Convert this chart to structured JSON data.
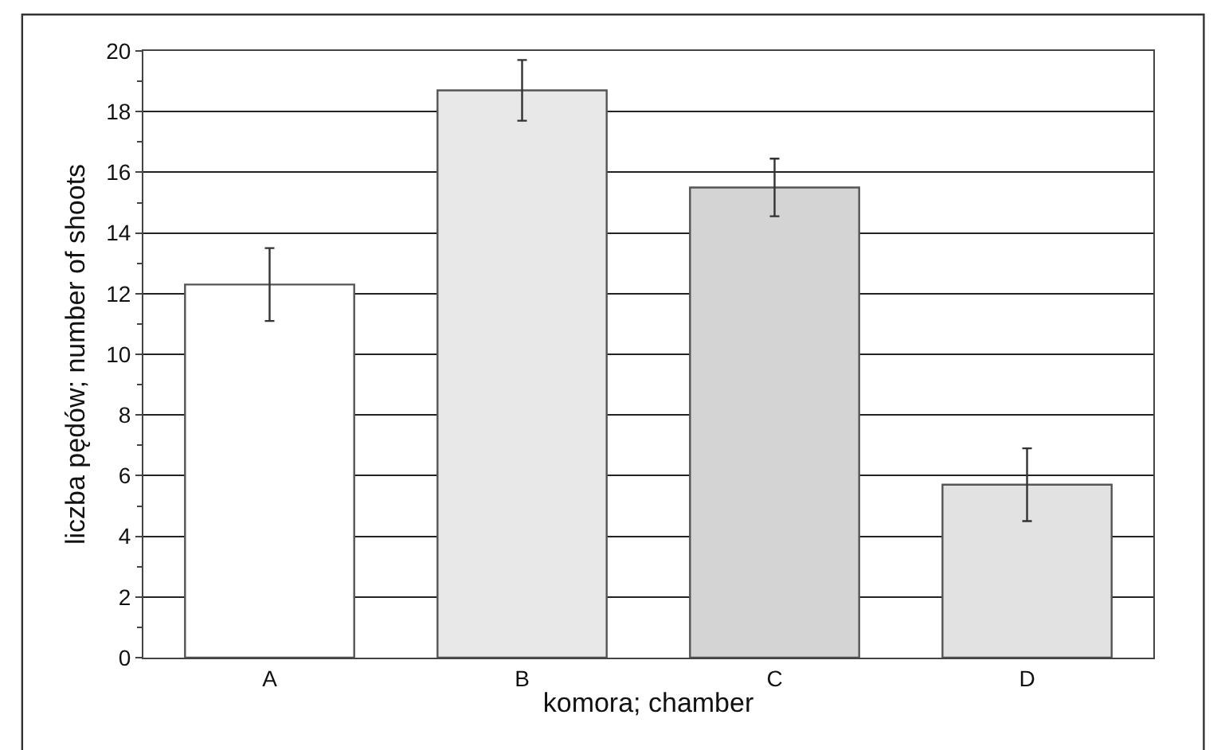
{
  "chart_data": {
    "type": "bar",
    "xlabel": "komora; chamber",
    "ylabel": "liczba pędów; number of shoots",
    "categories": [
      "A",
      "B",
      "C",
      "D"
    ],
    "values": [
      12.3,
      18.7,
      15.5,
      5.7
    ],
    "errors": [
      1.2,
      1.0,
      0.95,
      1.2
    ],
    "colors": [
      "#ffffff",
      "#e8e8e8",
      "#d4d4d4",
      "#e2e2e2"
    ],
    "ylim": [
      0,
      20
    ],
    "yticks": [
      0,
      2,
      4,
      6,
      8,
      10,
      12,
      14,
      16,
      18,
      20
    ],
    "grid": "y"
  }
}
